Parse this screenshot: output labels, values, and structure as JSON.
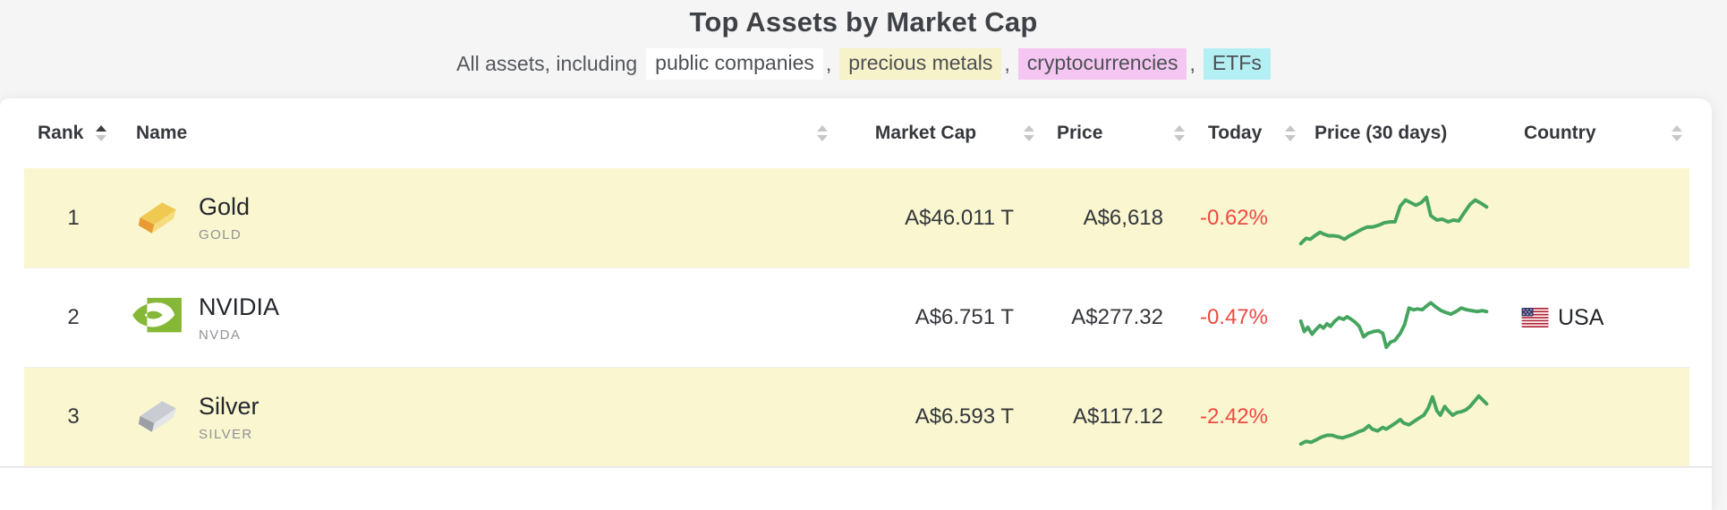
{
  "page": {
    "title": "Top Assets by Market Cap",
    "subtitle": {
      "prefix": "All assets, including",
      "separator": ",",
      "links": [
        {
          "label": "public companies",
          "bg": "#ffffff"
        },
        {
          "label": "precious metals",
          "bg": "#f6f2c9"
        },
        {
          "label": "cryptocurrencies",
          "bg": "#f4c6f1"
        },
        {
          "label": "ETFs",
          "bg": "#b4eff4"
        }
      ]
    }
  },
  "table": {
    "headers": {
      "rank": "Rank",
      "name": "Name",
      "market_cap": "Market Cap",
      "price": "Price",
      "today": "Today",
      "price_30d": "Price (30 days)",
      "country": "Country"
    },
    "sort": {
      "active_column": "rank",
      "direction": "asc"
    },
    "colors": {
      "row_highlight": "#faf6d0",
      "negative": "#ef4a42",
      "sparkline": "#45a55f",
      "nvidia_green": "#85b836",
      "gold_top": "#f0c952",
      "gold_front": "#f5dc7e",
      "gold_end": "#e89a33",
      "silver_top": "#c9ccd2",
      "silver_front": "#e3e5e8",
      "silver_end": "#9b9fa6"
    },
    "rows": [
      {
        "rank": "1",
        "icon": "gold-bar-icon",
        "name": "Gold",
        "ticker": "GOLD",
        "market_cap": "A$46.011 T",
        "price": "A$6,618",
        "today": "-0.62%",
        "country": "",
        "highlighted": true,
        "spark": [
          [
            2,
            69
          ],
          [
            8,
            63
          ],
          [
            13,
            64
          ],
          [
            18,
            60
          ],
          [
            24,
            56
          ],
          [
            28,
            58
          ],
          [
            34,
            60
          ],
          [
            40,
            60
          ],
          [
            46,
            61
          ],
          [
            52,
            64
          ],
          [
            58,
            60
          ],
          [
            64,
            57
          ],
          [
            71,
            53
          ],
          [
            78,
            50
          ],
          [
            84,
            50
          ],
          [
            91,
            48
          ],
          [
            98,
            45
          ],
          [
            105,
            44
          ],
          [
            110,
            44
          ],
          [
            116,
            26
          ],
          [
            122,
            19
          ],
          [
            128,
            22
          ],
          [
            134,
            25
          ],
          [
            140,
            22
          ],
          [
            146,
            16
          ],
          [
            151,
            37
          ],
          [
            158,
            42
          ],
          [
            164,
            41
          ],
          [
            171,
            44
          ],
          [
            177,
            42
          ],
          [
            183,
            43
          ],
          [
            189,
            34
          ],
          [
            196,
            24
          ],
          [
            202,
            19
          ],
          [
            209,
            23
          ],
          [
            215,
            27
          ]
        ]
      },
      {
        "rank": "2",
        "icon": "nvidia-logo-icon",
        "name": "NVIDIA",
        "ticker": "NVDA",
        "market_cap": "A$6.751 T",
        "price": "A$277.32",
        "today": "-0.47%",
        "country": "USA",
        "highlighted": false,
        "spark": [
          [
            2,
            44
          ],
          [
            6,
            56
          ],
          [
            10,
            51
          ],
          [
            15,
            59
          ],
          [
            19,
            54
          ],
          [
            24,
            49
          ],
          [
            28,
            52
          ],
          [
            32,
            47
          ],
          [
            36,
            50
          ],
          [
            41,
            44
          ],
          [
            46,
            40
          ],
          [
            51,
            42
          ],
          [
            55,
            39
          ],
          [
            60,
            42
          ],
          [
            64,
            45
          ],
          [
            69,
            50
          ],
          [
            74,
            62
          ],
          [
            79,
            58
          ],
          [
            85,
            56
          ],
          [
            91,
            55
          ],
          [
            96,
            58
          ],
          [
            100,
            74
          ],
          [
            105,
            68
          ],
          [
            110,
            66
          ],
          [
            116,
            58
          ],
          [
            121,
            48
          ],
          [
            126,
            29
          ],
          [
            131,
            31
          ],
          [
            136,
            30
          ],
          [
            141,
            31
          ],
          [
            147,
            26
          ],
          [
            151,
            23
          ],
          [
            157,
            28
          ],
          [
            163,
            32
          ],
          [
            168,
            34
          ],
          [
            174,
            36
          ],
          [
            180,
            33
          ],
          [
            186,
            29
          ],
          [
            192,
            31
          ],
          [
            198,
            32
          ],
          [
            204,
            33
          ],
          [
            210,
            32
          ],
          [
            215,
            33
          ]
        ]
      },
      {
        "rank": "3",
        "icon": "silver-bar-icon",
        "name": "Silver",
        "ticker": "SILVER",
        "market_cap": "A$6.593 T",
        "price": "A$117.12",
        "today": "-2.42%",
        "country": "",
        "highlighted": true,
        "spark": [
          [
            2,
            71
          ],
          [
            8,
            68
          ],
          [
            14,
            69
          ],
          [
            20,
            66
          ],
          [
            26,
            63
          ],
          [
            32,
            61
          ],
          [
            38,
            61
          ],
          [
            44,
            63
          ],
          [
            50,
            64
          ],
          [
            56,
            62
          ],
          [
            62,
            60
          ],
          [
            68,
            57
          ],
          [
            74,
            55
          ],
          [
            80,
            50
          ],
          [
            84,
            54
          ],
          [
            90,
            56
          ],
          [
            96,
            52
          ],
          [
            100,
            54
          ],
          [
            106,
            50
          ],
          [
            112,
            46
          ],
          [
            116,
            43
          ],
          [
            120,
            47
          ],
          [
            126,
            49
          ],
          [
            132,
            45
          ],
          [
            138,
            41
          ],
          [
            143,
            38
          ],
          [
            148,
            30
          ],
          [
            153,
            17
          ],
          [
            158,
            33
          ],
          [
            162,
            38
          ],
          [
            167,
            28
          ],
          [
            171,
            33
          ],
          [
            176,
            38
          ],
          [
            181,
            35
          ],
          [
            186,
            34
          ],
          [
            191,
            32
          ],
          [
            196,
            28
          ],
          [
            201,
            22
          ],
          [
            206,
            16
          ],
          [
            211,
            21
          ],
          [
            215,
            25
          ]
        ]
      }
    ]
  }
}
